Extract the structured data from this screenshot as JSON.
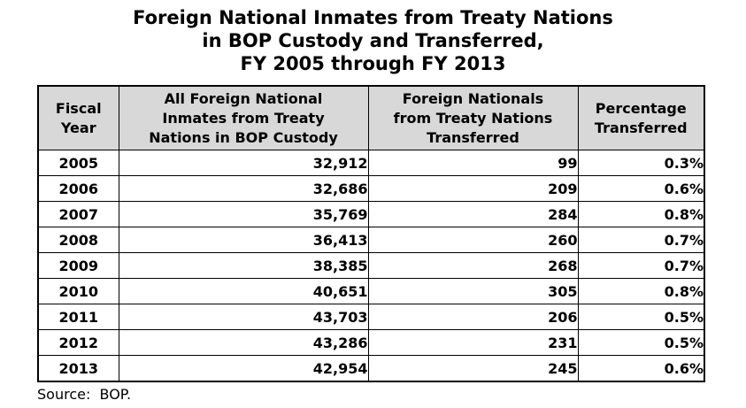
{
  "title": {
    "lines": [
      "Foreign National Inmates from Treaty Nations",
      "in BOP Custody and Transferred,",
      "FY 2005 through FY 2013"
    ]
  },
  "table": {
    "headers": [
      "Fiscal\nYear",
      "All Foreign National\nInmates from Treaty\nNations in BOP Custody",
      "Foreign Nationals\nfrom Treaty Nations\nTransferred",
      "Percentage\nTransferred"
    ],
    "rows": [
      {
        "year": "2005",
        "custody": "32,912",
        "transferred": "99",
        "percentage": "0.3%"
      },
      {
        "year": "2006",
        "custody": "32,686",
        "transferred": "209",
        "percentage": "0.6%"
      },
      {
        "year": "2007",
        "custody": "35,769",
        "transferred": "284",
        "percentage": "0.8%"
      },
      {
        "year": "2008",
        "custody": "36,413",
        "transferred": "260",
        "percentage": "0.7%"
      },
      {
        "year": "2009",
        "custody": "38,385",
        "transferred": "268",
        "percentage": "0.7%"
      },
      {
        "year": "2010",
        "custody": "40,651",
        "transferred": "305",
        "percentage": "0.8%"
      },
      {
        "year": "2011",
        "custody": "43,703",
        "transferred": "206",
        "percentage": "0.5%"
      },
      {
        "year": "2012",
        "custody": "43,286",
        "transferred": "231",
        "percentage": "0.5%"
      },
      {
        "year": "2013",
        "custody": "42,954",
        "transferred": "245",
        "percentage": "0.6%"
      }
    ]
  },
  "source_label": "Source:  BOP.",
  "colors": {
    "header_background": "#d8d8d8",
    "border": "#000000",
    "text": "#000000",
    "page_background": "#ffffff"
  },
  "chart_data": {
    "type": "table",
    "title": "Foreign National Inmates from Treaty Nations in BOP Custody and Transferred, FY 2005 through FY 2013",
    "columns": [
      "Fiscal Year",
      "All Foreign National Inmates from Treaty Nations in BOP Custody",
      "Foreign Nationals from Treaty Nations Transferred",
      "Percentage Transferred"
    ],
    "rows": [
      [
        "2005",
        32912,
        99,
        "0.3%"
      ],
      [
        "2006",
        32686,
        209,
        "0.6%"
      ],
      [
        "2007",
        35769,
        284,
        "0.8%"
      ],
      [
        "2008",
        36413,
        260,
        "0.7%"
      ],
      [
        "2009",
        38385,
        268,
        "0.7%"
      ],
      [
        "2010",
        40651,
        305,
        "0.8%"
      ],
      [
        "2011",
        43703,
        206,
        "0.5%"
      ],
      [
        "2012",
        43286,
        231,
        "0.5%"
      ],
      [
        "2013",
        42954,
        245,
        "0.6%"
      ]
    ],
    "source": "BOP"
  }
}
